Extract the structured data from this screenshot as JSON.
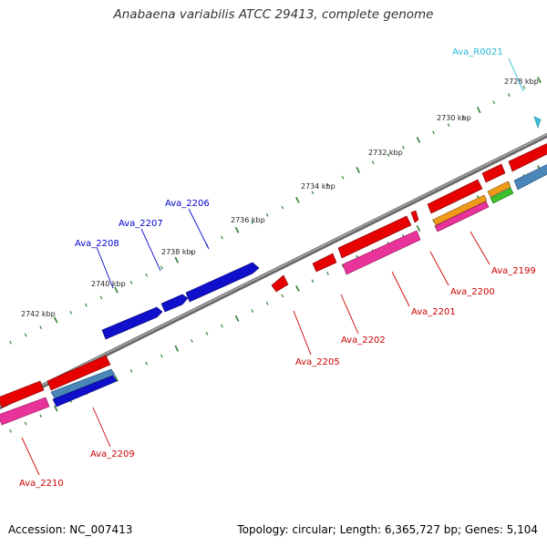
{
  "title": "Anabaena variabilis ATCC 29413, complete genome",
  "footer": {
    "accession": "Accession: NC_007413",
    "summary": "Topology: circular; Length: 6,365,727 bp; Genes: 5,104"
  },
  "colors": {
    "backbone": "#8c8c8c",
    "tick": "#2e7d32",
    "red": "#e60000",
    "blue": "#1010cc",
    "pink": "#e8349a",
    "steel": "#4a86b8",
    "orange": "#f09a1a",
    "green": "#3cbf2a",
    "cyan": "#38c0e0",
    "label_red": "#cc0000",
    "label_blue": "#0000cc",
    "label_cyan": "#27b8d8"
  },
  "kbp_labels": [
    "2728 kbp",
    "2730 kbp",
    "2732 kbp",
    "2734 kbp",
    "2736 kbp",
    "2738 kbp",
    "2740 kbp",
    "2742 kbp"
  ],
  "gene_labels": {
    "Ava_R0021": "Ava_R0021",
    "Ava_2206": "Ava_2206",
    "Ava_2207": "Ava_2207",
    "Ava_2208": "Ava_2208",
    "Ava_2209": "Ava_2209",
    "Ava_2210": "Ava_2210",
    "Ava_2205": "Ava_2205",
    "Ava_2202": "Ava_2202",
    "Ava_2201": "Ava_2201",
    "Ava_2200": "Ava_2200",
    "Ava_2199": "Ava_2199"
  }
}
